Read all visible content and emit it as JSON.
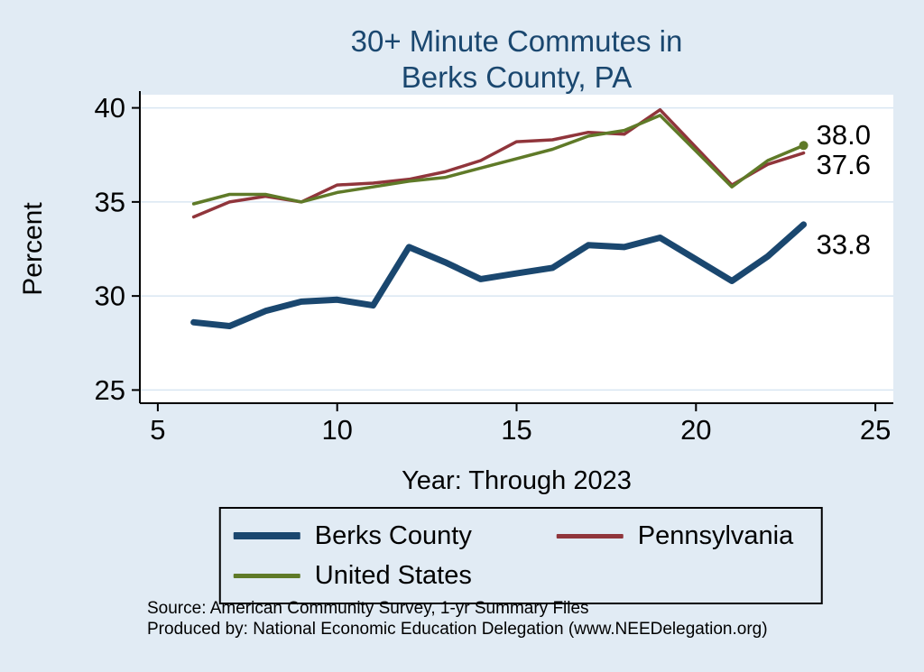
{
  "title": {
    "line1": "30+ Minute Commutes in",
    "line2": "Berks County, PA"
  },
  "axes": {
    "y_label": "Percent",
    "x_label": "Year: Through 2023",
    "y_ticks": [
      25,
      30,
      35,
      40
    ],
    "x_ticks": [
      5,
      10,
      15,
      20,
      25
    ]
  },
  "legend": {
    "items": [
      {
        "label": "Berks County",
        "color": "#1a476f",
        "weight": 8
      },
      {
        "label": "Pennsylvania",
        "color": "#90353b",
        "weight": 5
      },
      {
        "label": "United States",
        "color": "#5f7a28",
        "weight": 5
      }
    ]
  },
  "annotations": [
    {
      "series": "United States",
      "text": "38.0"
    },
    {
      "series": "Pennsylvania",
      "text": "37.6"
    },
    {
      "series": "Berks County",
      "text": "33.8"
    }
  ],
  "source": {
    "line1": "Source: American Community Survey, 1-yr Summary Files",
    "line2": "Produced by: National Economic Education Delegation (www.NEEDelegation.org)"
  },
  "colors": {
    "background": "#e1ebf4",
    "title": "#1a476f",
    "plot_background": "#ffffff",
    "gridline": "#d9e6f2",
    "axis": "#000000"
  },
  "chart_data": {
    "type": "line",
    "title": "30+ Minute Commutes in Berks County, PA",
    "xlabel": "Year: Through 2023",
    "ylabel": "Percent",
    "xlim": [
      4.5,
      25.5
    ],
    "ylim": [
      24.3,
      40.7
    ],
    "grid": true,
    "legend_position": "bottom",
    "x": [
      6,
      7,
      8,
      9,
      10,
      11,
      12,
      13,
      14,
      15,
      16,
      17,
      18,
      19,
      21,
      22,
      23
    ],
    "series": [
      {
        "name": "Berks County",
        "color": "#1a476f",
        "width": 7,
        "values": [
          28.6,
          28.4,
          29.2,
          29.7,
          29.8,
          29.5,
          32.6,
          31.8,
          30.9,
          31.2,
          31.5,
          32.7,
          32.6,
          33.1,
          30.8,
          32.1,
          33.8
        ]
      },
      {
        "name": "Pennsylvania",
        "color": "#90353b",
        "width": 3.5,
        "values": [
          34.2,
          35.0,
          35.3,
          35.0,
          35.9,
          36.0,
          36.2,
          36.6,
          37.2,
          38.2,
          38.3,
          38.7,
          38.6,
          39.9,
          35.9,
          37.0,
          37.6
        ]
      },
      {
        "name": "United States",
        "color": "#5f7a28",
        "width": 3.5,
        "values": [
          34.9,
          35.4,
          35.4,
          35.0,
          35.5,
          35.8,
          36.1,
          36.3,
          36.8,
          37.3,
          37.8,
          38.5,
          38.8,
          39.6,
          35.8,
          37.2,
          38.0
        ]
      }
    ],
    "end_labels": {
      "United States": "38.0",
      "Pennsylvania": "37.6",
      "Berks County": "33.8"
    }
  }
}
